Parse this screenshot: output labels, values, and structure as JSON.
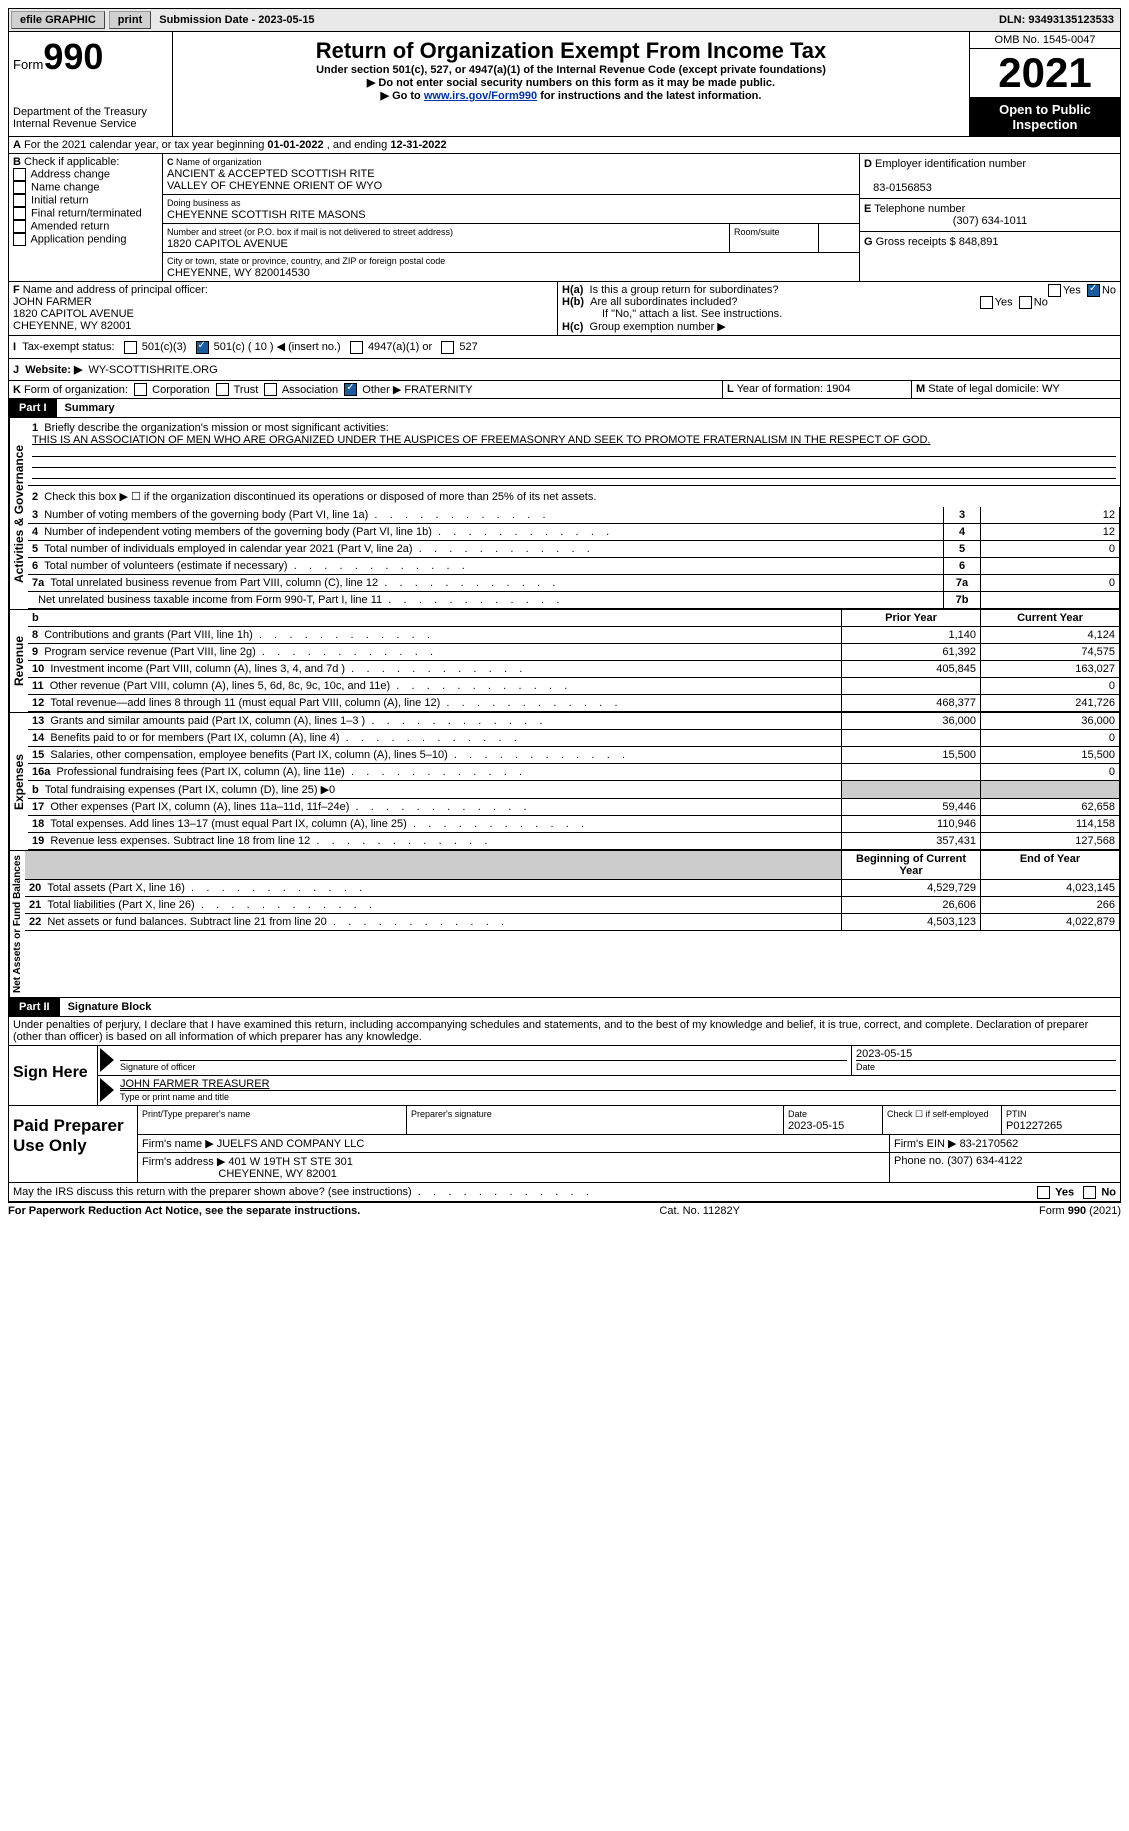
{
  "topbar": {
    "efile": "efile GRAPHIC",
    "print": "print",
    "subdate_label": "Submission Date - ",
    "subdate": "2023-05-15",
    "dln_label": "DLN: ",
    "dln": "93493135123533"
  },
  "header": {
    "form_word": "Form",
    "form_no": "990",
    "dept1": "Department of the Treasury",
    "dept2": "Internal Revenue Service",
    "title": "Return of Organization Exempt From Income Tax",
    "sub1": "Under section 501(c), 527, or 4947(a)(1) of the Internal Revenue Code (except private foundations)",
    "sub2": "Do not enter social security numbers on this form as it may be made public.",
    "sub3_pre": "Go to ",
    "sub3_link": "www.irs.gov/Form990",
    "sub3_post": " for instructions and the latest information.",
    "omb": "OMB No. 1545-0047",
    "year": "2021",
    "inspect": "Open to Public Inspection"
  },
  "A": {
    "text": "For the 2021 calendar year, or tax year beginning ",
    "begin": "01-01-2022",
    "mid": " , and ending ",
    "end": "12-31-2022"
  },
  "B": {
    "label": "Check if applicable:",
    "opts": [
      "Address change",
      "Name change",
      "Initial return",
      "Final return/terminated",
      "Amended return",
      "Application pending"
    ]
  },
  "C": {
    "name_label": "Name of organization",
    "name1": "ANCIENT & ACCEPTED SCOTTISH RITE",
    "name2": "VALLEY OF CHEYENNE ORIENT OF WYO",
    "dba_label": "Doing business as",
    "dba": "CHEYENNE SCOTTISH RITE MASONS",
    "street_label": "Number and street (or P.O. box if mail is not delivered to street address)",
    "room_label": "Room/suite",
    "street": "1820 CAPITOL AVENUE",
    "city_label": "City or town, state or province, country, and ZIP or foreign postal code",
    "city": "CHEYENNE, WY  820014530"
  },
  "D": {
    "label": "Employer identification number",
    "value": "83-0156853"
  },
  "E": {
    "label": "Telephone number",
    "value": "(307) 634-1011"
  },
  "G": {
    "label": "Gross receipts $ ",
    "value": "848,891"
  },
  "F": {
    "label": "Name and address of principal officer:",
    "name": "JOHN FARMER",
    "addr1": "1820 CAPITOL AVENUE",
    "addr2": "CHEYENNE, WY  82001"
  },
  "H": {
    "a": "Is this a group return for subordinates?",
    "b": "Are all subordinates included?",
    "b_note": "If \"No,\" attach a list. See instructions.",
    "c": "Group exemption number ▶",
    "yes": "Yes",
    "no": "No"
  },
  "I": {
    "label": "Tax-exempt status:",
    "o1": "501(c)(3)",
    "o2a": "501(c) ( ",
    "o2n": "10",
    "o2b": " ) ◀ (insert no.)",
    "o3": "4947(a)(1) or",
    "o4": "527"
  },
  "J": {
    "label": "Website: ▶",
    "value": "WY-SCOTTISHRITE.ORG"
  },
  "K": {
    "label": "Form of organization:",
    "o1": "Corporation",
    "o2": "Trust",
    "o3": "Association",
    "o4": "Other ▶",
    "other": "FRATERNITY"
  },
  "L": {
    "label": "Year of formation: ",
    "value": "1904"
  },
  "M": {
    "label": "State of legal domicile: ",
    "value": "WY"
  },
  "part1": {
    "tab": "Part I",
    "title": "Summary"
  },
  "summary": {
    "l1_label": "Briefly describe the organization's mission or most significant activities:",
    "l1_text": "THIS IS AN ASSOCIATION OF MEN WHO ARE ORGANIZED UNDER THE AUSPICES OF FREEMASONRY AND SEEK TO PROMOTE FRATERNALISM IN THE RESPECT OF GOD.",
    "l2": "Check this box ▶ ☐ if the organization discontinued its operations or disposed of more than 25% of its net assets.",
    "rows_gov": [
      {
        "n": "3",
        "t": "Number of voting members of the governing body (Part VI, line 1a)",
        "box": "3",
        "v": "12"
      },
      {
        "n": "4",
        "t": "Number of independent voting members of the governing body (Part VI, line 1b)",
        "box": "4",
        "v": "12"
      },
      {
        "n": "5",
        "t": "Total number of individuals employed in calendar year 2021 (Part V, line 2a)",
        "box": "5",
        "v": "0"
      },
      {
        "n": "6",
        "t": "Total number of volunteers (estimate if necessary)",
        "box": "6",
        "v": ""
      },
      {
        "n": "7a",
        "t": "Total unrelated business revenue from Part VIII, column (C), line 12",
        "box": "7a",
        "v": "0"
      },
      {
        "n": "",
        "t": "Net unrelated business taxable income from Form 990-T, Part I, line 11",
        "box": "7b",
        "v": ""
      }
    ],
    "hdr_prior": "Prior Year",
    "hdr_curr": "Current Year",
    "rows_rev": [
      {
        "n": "8",
        "t": "Contributions and grants (Part VIII, line 1h)",
        "p": "1,140",
        "c": "4,124"
      },
      {
        "n": "9",
        "t": "Program service revenue (Part VIII, line 2g)",
        "p": "61,392",
        "c": "74,575"
      },
      {
        "n": "10",
        "t": "Investment income (Part VIII, column (A), lines 3, 4, and 7d )",
        "p": "405,845",
        "c": "163,027"
      },
      {
        "n": "11",
        "t": "Other revenue (Part VIII, column (A), lines 5, 6d, 8c, 9c, 10c, and 11e)",
        "p": "",
        "c": "0"
      },
      {
        "n": "12",
        "t": "Total revenue—add lines 8 through 11 (must equal Part VIII, column (A), line 12)",
        "p": "468,377",
        "c": "241,726"
      }
    ],
    "rows_exp": [
      {
        "n": "13",
        "t": "Grants and similar amounts paid (Part IX, column (A), lines 1–3 )",
        "p": "36,000",
        "c": "36,000"
      },
      {
        "n": "14",
        "t": "Benefits paid to or for members (Part IX, column (A), line 4)",
        "p": "",
        "c": "0"
      },
      {
        "n": "15",
        "t": "Salaries, other compensation, employee benefits (Part IX, column (A), lines 5–10)",
        "p": "15,500",
        "c": "15,500"
      },
      {
        "n": "16a",
        "t": "Professional fundraising fees (Part IX, column (A), line 11e)",
        "p": "",
        "c": "0"
      },
      {
        "n": "b",
        "t": "Total fundraising expenses (Part IX, column (D), line 25) ▶0",
        "p": "SHADE",
        "c": "SHADE"
      },
      {
        "n": "17",
        "t": "Other expenses (Part IX, column (A), lines 11a–11d, 11f–24e)",
        "p": "59,446",
        "c": "62,658"
      },
      {
        "n": "18",
        "t": "Total expenses. Add lines 13–17 (must equal Part IX, column (A), line 25)",
        "p": "110,946",
        "c": "114,158"
      },
      {
        "n": "19",
        "t": "Revenue less expenses. Subtract line 18 from line 12",
        "p": "357,431",
        "c": "127,568"
      }
    ],
    "hdr_beg": "Beginning of Current Year",
    "hdr_end": "End of Year",
    "rows_net": [
      {
        "n": "20",
        "t": "Total assets (Part X, line 16)",
        "p": "4,529,729",
        "c": "4,023,145"
      },
      {
        "n": "21",
        "t": "Total liabilities (Part X, line 26)",
        "p": "26,606",
        "c": "266"
      },
      {
        "n": "22",
        "t": "Net assets or fund balances. Subtract line 21 from line 20",
        "p": "4,503,123",
        "c": "4,022,879"
      }
    ],
    "vlabels": {
      "gov": "Activities & Governance",
      "rev": "Revenue",
      "exp": "Expenses",
      "net": "Net Assets or Fund Balances"
    }
  },
  "part2": {
    "tab": "Part II",
    "title": "Signature Block"
  },
  "sig": {
    "jurat": "Under penalties of perjury, I declare that I have examined this return, including accompanying schedules and statements, and to the best of my knowledge and belief, it is true, correct, and complete. Declaration of preparer (other than officer) is based on all information of which preparer has any knowledge.",
    "here": "Sign Here",
    "sig_officer": "Signature of officer",
    "date": "Date",
    "sig_date": "2023-05-15",
    "name_title": "JOHN FARMER  TREASURER",
    "type_name": "Type or print name and title",
    "paid": "Paid Preparer Use Only",
    "prep_name_label": "Print/Type preparer's name",
    "prep_sig_label": "Preparer's signature",
    "prep_date_label": "Date",
    "prep_date": "2023-05-15",
    "check_label": "Check ☐ if self-employed",
    "ptin_label": "PTIN",
    "ptin": "P01227265",
    "firm_name_label": "Firm's name    ▶ ",
    "firm_name": "JUELFS AND COMPANY LLC",
    "firm_ein_label": "Firm's EIN ▶ ",
    "firm_ein": "83-2170562",
    "firm_addr_label": "Firm's address ▶ ",
    "firm_addr1": "401 W 19TH ST STE 301",
    "firm_addr2": "CHEYENNE, WY  82001",
    "phone_label": "Phone no. ",
    "phone": "(307) 634-4122",
    "may_irs": "May the IRS discuss this return with the preparer shown above? (see instructions)"
  },
  "footer": {
    "left": "For Paperwork Reduction Act Notice, see the separate instructions.",
    "mid": "Cat. No. 11282Y",
    "right": "Form 990 (2021)"
  }
}
